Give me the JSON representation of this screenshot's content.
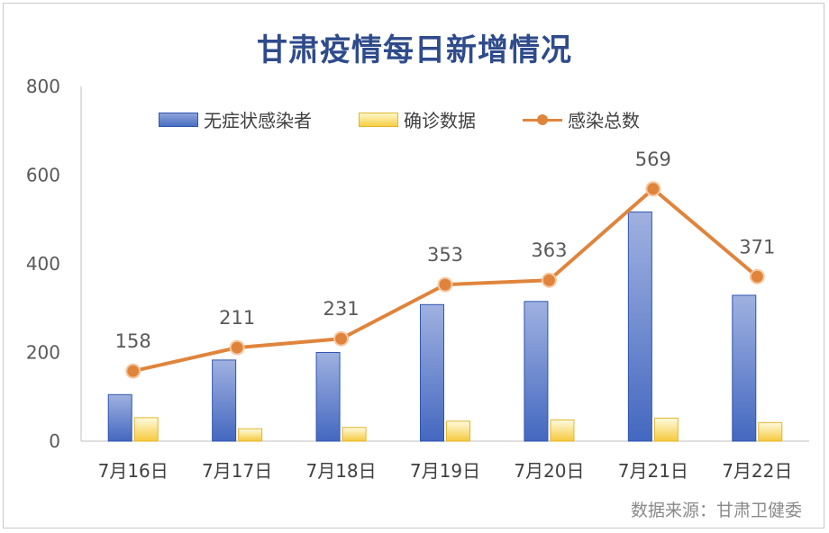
{
  "title": "甘肃疫情每日新增情况",
  "source": "数据来源：甘肃卫健委",
  "chart_data": {
    "type": "bar",
    "title": "甘肃疫情每日新增情况",
    "categories": [
      "7月16日",
      "7月17日",
      "7月18日",
      "7月19日",
      "7月20日",
      "7月21日",
      "7月22日"
    ],
    "series": [
      {
        "name": "无症状感染者",
        "type": "bar",
        "values": [
          105,
          183,
          200,
          308,
          315,
          517,
          329
        ],
        "color": "#4a6fc4"
      },
      {
        "name": "确诊数据",
        "type": "bar",
        "values": [
          53,
          28,
          31,
          45,
          48,
          52,
          42
        ],
        "color": "#f6cf45"
      },
      {
        "name": "感染总数",
        "type": "line",
        "values": [
          158,
          211,
          231,
          353,
          363,
          569,
          371
        ],
        "color": "#e0843c",
        "labels": true
      }
    ],
    "ylim": [
      0,
      800
    ],
    "yticks": [
      0,
      200,
      400,
      600,
      800
    ],
    "legend": "top",
    "grid": false
  }
}
